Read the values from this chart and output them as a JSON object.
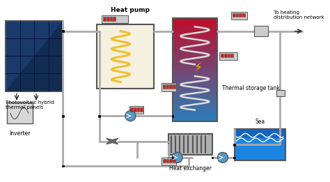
{
  "bg_color": "#ffffff",
  "labels": {
    "heat_pump": "Heat pump",
    "inverter": "Inverter",
    "pv_panels": "Photovoltaic hybrid\nthermal panels",
    "thermal_tank": "Thermal storage tank",
    "sea": "Sea",
    "heat_exchanger": "Heat exchanger",
    "to_heating": "To heating\ndistribution network"
  },
  "colors": {
    "pv_blue": "#1a3a6b",
    "pv_dark": "#0d1f3c",
    "tank_red": "#c0392b",
    "tank_blue": "#2980b9",
    "sea_blue": "#2196f3",
    "sea_dark": "#1565c0",
    "pipe_dark": "#555555",
    "coil_yellow": "#f0c030",
    "coil_blue": "#4a90d9",
    "inverter_bg": "#d8d8d8",
    "arrow_color": "#333333",
    "meter_red": "#cc2222",
    "meter_bg": "#cccccc",
    "lightning": "#f0c000",
    "pump_blue": "#5599cc",
    "valve_color": "#666666",
    "pipe_c": "#aaaaaa",
    "hp_bg": "#f5f0e0",
    "hx_bg": "#b0b0b0"
  }
}
